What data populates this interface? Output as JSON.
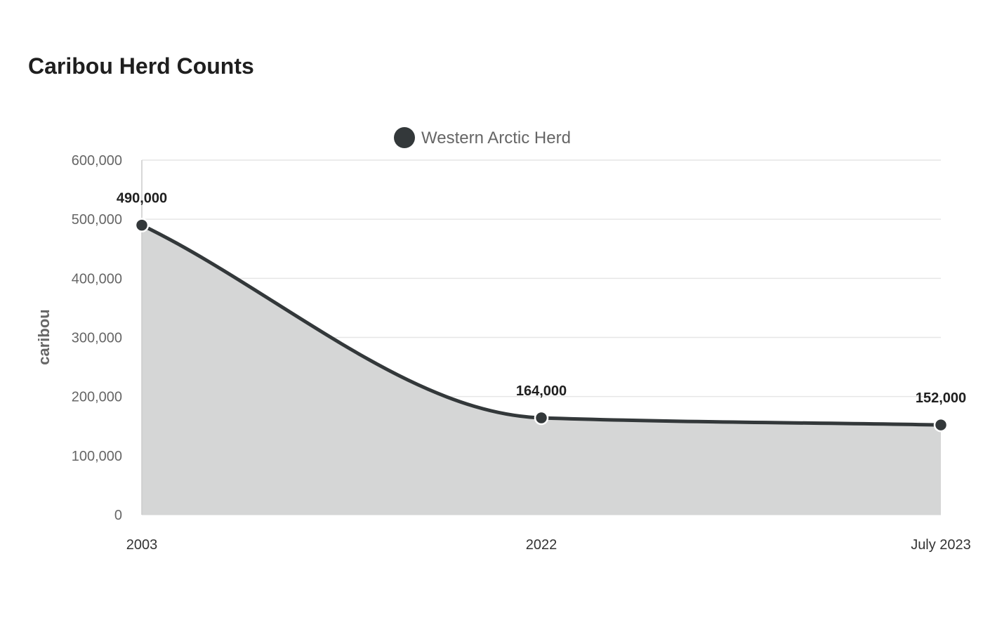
{
  "chart_data": {
    "type": "area",
    "title": "Caribou Herd Counts",
    "ylabel": "caribou",
    "xlabel": "",
    "categories": [
      "2003",
      "2022",
      "July 2023"
    ],
    "series": [
      {
        "name": "Western Arctic Herd",
        "values": [
          490000,
          164000,
          152000
        ],
        "data_labels": [
          "490,000",
          "164,000",
          "152,000"
        ]
      }
    ],
    "ylim": [
      0,
      600000
    ],
    "yticks": [
      {
        "value": 0,
        "label": "0"
      },
      {
        "value": 100000,
        "label": "100,000"
      },
      {
        "value": 200000,
        "label": "200,000"
      },
      {
        "value": 300000,
        "label": "300,000"
      },
      {
        "value": 400000,
        "label": "400,000"
      },
      {
        "value": 500000,
        "label": "500,000"
      },
      {
        "value": 600000,
        "label": "600,000"
      }
    ],
    "grid": true,
    "legend": "top-center",
    "colors": {
      "line": "#33383a",
      "fill": "#d5d6d6",
      "grid": "#e6e6e6"
    }
  }
}
